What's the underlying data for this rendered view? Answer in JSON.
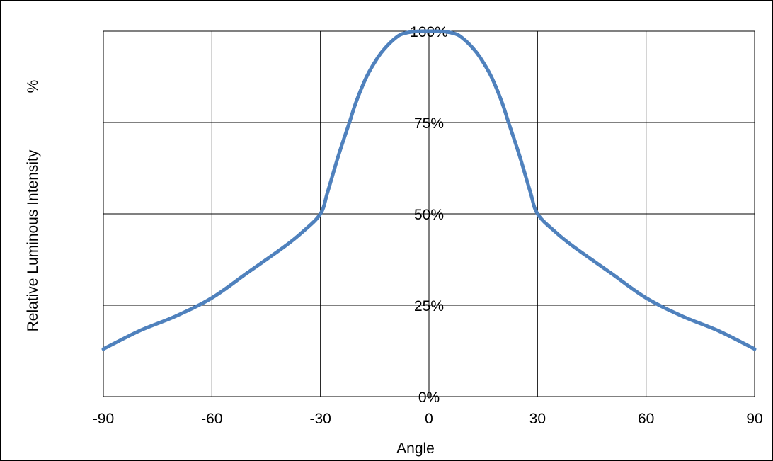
{
  "chart_data": {
    "type": "line",
    "xlabel": "Angle",
    "ylabel": "Relative Luminous Intensity",
    "y_unit_label": "%",
    "xlim": [
      -90,
      90
    ],
    "ylim": [
      0,
      100
    ],
    "x_ticks": [
      -90,
      -60,
      -30,
      0,
      30,
      60,
      90
    ],
    "x_tick_labels": [
      "-90",
      "-60",
      "-30",
      "0",
      "30",
      "60",
      "90"
    ],
    "y_ticks": [
      0,
      25,
      50,
      75,
      100
    ],
    "y_tick_labels": [
      "0%",
      "25%",
      "50%",
      "75%",
      "100%"
    ],
    "grid": true,
    "series_color": "#4f81bd",
    "series": [
      {
        "x": [
          -90,
          -80,
          -70,
          -60,
          -50,
          -40,
          -35,
          -30,
          -28,
          -25,
          -22,
          -20,
          -17,
          -14,
          -12,
          -10,
          -8,
          -6,
          -4,
          -2,
          0,
          2,
          4,
          6,
          8,
          10,
          12,
          14,
          17,
          20,
          22,
          25,
          28,
          30,
          35,
          40,
          50,
          60,
          70,
          80,
          90
        ],
        "y": [
          13,
          18,
          22,
          27,
          34,
          41,
          45,
          50,
          56,
          66,
          75,
          81,
          88,
          93,
          95.5,
          97.5,
          99,
          99.6,
          99.9,
          100,
          100,
          100,
          99.9,
          99.6,
          99,
          97.5,
          95.5,
          93,
          88,
          81,
          75,
          66,
          56,
          50,
          45,
          41,
          34,
          27,
          22,
          18,
          13
        ]
      }
    ]
  }
}
